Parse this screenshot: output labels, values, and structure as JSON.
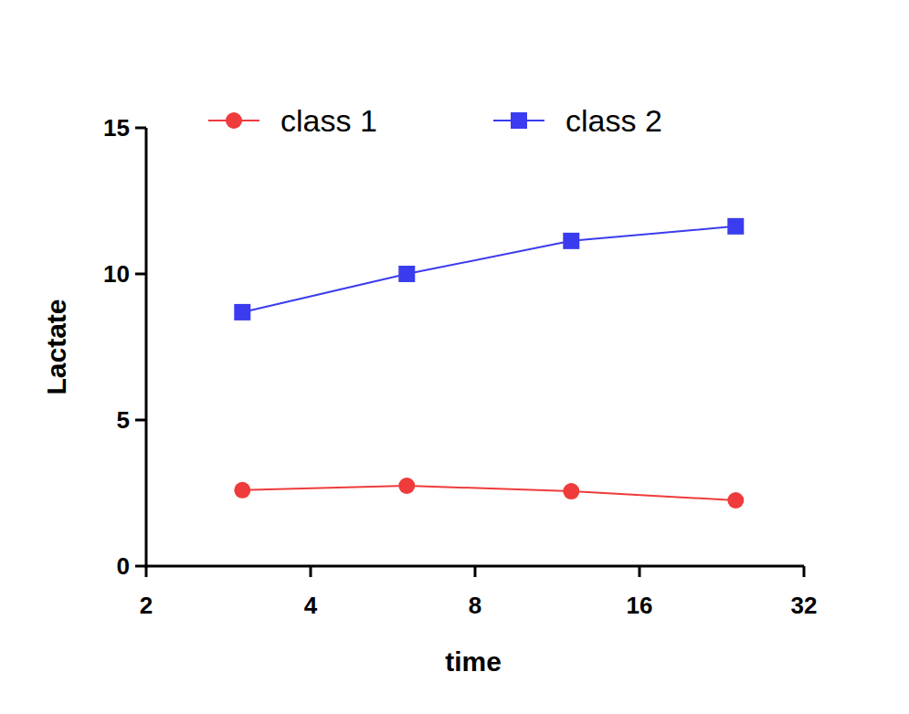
{
  "chart_data": {
    "type": "line",
    "x_label": "time",
    "y_label": "Lactate",
    "x": [
      3,
      6,
      12,
      24
    ],
    "series": [
      {
        "name": "class 1",
        "color": "#ef3b3b",
        "marker": "circle",
        "values": [
          2.6,
          2.75,
          2.56,
          2.25
        ]
      },
      {
        "name": "class 2",
        "color": "#3b3bef",
        "marker": "square",
        "values": [
          8.69,
          10.0,
          11.13,
          11.63
        ]
      }
    ],
    "xlim": [
      2,
      32
    ],
    "xticks": [
      2,
      4,
      8,
      16,
      32
    ],
    "ylim": [
      0,
      15
    ],
    "yticks": [
      0,
      5,
      10,
      15
    ],
    "log": "x",
    "grid": false,
    "legend": "top"
  }
}
